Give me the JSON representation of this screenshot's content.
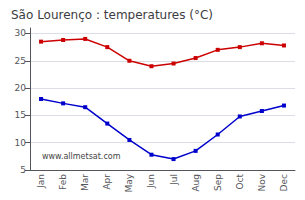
{
  "chart_data": {
    "type": "line",
    "title": "São Lourenço : temperatures (°C)",
    "categories": [
      "Jan",
      "Feb",
      "Mar",
      "Apr",
      "May",
      "Jun",
      "Jul",
      "Aug",
      "Sep",
      "Oct",
      "Nov",
      "Dec"
    ],
    "series": [
      {
        "color": "#cc0000",
        "values": [
          28.5,
          28.8,
          29.0,
          27.5,
          25.0,
          24.0,
          24.5,
          25.5,
          27.0,
          27.5,
          28.2,
          27.8
        ]
      },
      {
        "color": "#0000cc",
        "values": [
          18.0,
          17.2,
          16.5,
          13.5,
          10.5,
          7.8,
          7.0,
          8.5,
          11.5,
          14.8,
          15.8,
          16.8
        ]
      }
    ],
    "ylim": [
      5,
      31
    ],
    "yticks": [
      5,
      10,
      15,
      20,
      25,
      30
    ],
    "grid": true,
    "marker": "square",
    "annotations": [
      "www.allmetsat.com"
    ]
  }
}
